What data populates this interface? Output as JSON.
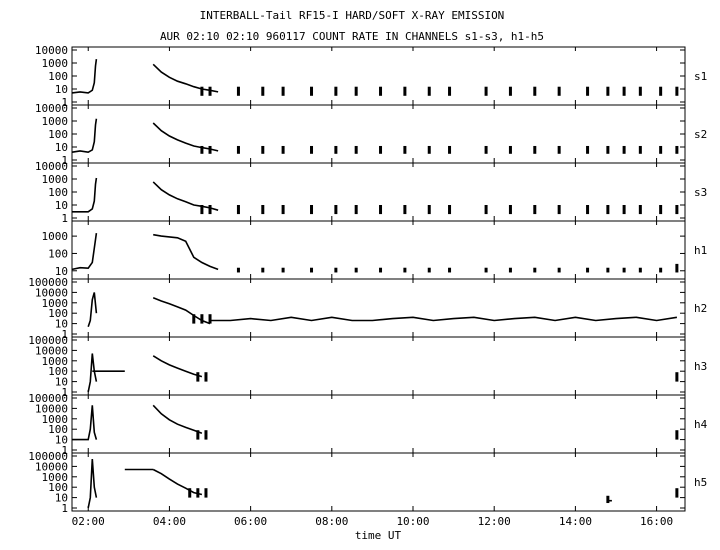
{
  "chart_data": {
    "type": "line",
    "title": "INTERBALL-Tail RF15-I HARD/SOFT X-RAY EMISSION",
    "subtitle": "AUR 02:10 02:10 960117  COUNT RATE IN CHANNELS s1-s3, h1-h5",
    "xlabel": "time UT",
    "x_unit": "hours UT",
    "xlim": [
      1.6,
      16.7
    ],
    "x_ticks": [
      {
        "value": 2,
        "label": "02:00"
      },
      {
        "value": 4,
        "label": "04:00"
      },
      {
        "value": 6,
        "label": "06:00"
      },
      {
        "value": 8,
        "label": "08:00"
      },
      {
        "value": 10,
        "label": "10:00"
      },
      {
        "value": 12,
        "label": "12:00"
      },
      {
        "value": 14,
        "label": "14:00"
      },
      {
        "value": 16,
        "label": "16:00"
      }
    ],
    "y_scale": "log",
    "grid": false,
    "panels": [
      {
        "channel": "s1",
        "ylim": [
          1,
          10000
        ],
        "y_ticks": [
          "1",
          "10",
          "100",
          "1000",
          "10000"
        ],
        "series": [
          {
            "x": [
              1.6,
              1.8,
              2.0,
              2.1,
              2.15,
              2.18,
              2.2
            ],
            "y": [
              5,
              6,
              5,
              8,
              30,
              600,
              2000
            ]
          },
          {
            "x": [
              3.6,
              3.8,
              4.0,
              4.2,
              4.4,
              4.6,
              4.8,
              5.0,
              5.2
            ],
            "y": [
              800,
              200,
              80,
              40,
              25,
              15,
              10,
              8,
              6
            ]
          }
        ],
        "bursts": [
          {
            "x": 4.8,
            "low": 3,
            "high": 15
          },
          {
            "x": 5.0,
            "low": 3,
            "high": 15
          },
          {
            "x": 5.7,
            "low": 3,
            "high": 15
          },
          {
            "x": 6.3,
            "low": 3,
            "high": 15
          },
          {
            "x": 6.8,
            "low": 3,
            "high": 15
          },
          {
            "x": 7.5,
            "low": 3,
            "high": 15
          },
          {
            "x": 8.1,
            "low": 3,
            "high": 15
          },
          {
            "x": 8.6,
            "low": 3,
            "high": 15
          },
          {
            "x": 9.2,
            "low": 3,
            "high": 15
          },
          {
            "x": 9.8,
            "low": 3,
            "high": 15
          },
          {
            "x": 10.4,
            "low": 3,
            "high": 15
          },
          {
            "x": 10.9,
            "low": 3,
            "high": 15
          },
          {
            "x": 11.8,
            "low": 3,
            "high": 15
          },
          {
            "x": 12.4,
            "low": 3,
            "high": 15
          },
          {
            "x": 13.0,
            "low": 3,
            "high": 15
          },
          {
            "x": 13.6,
            "low": 3,
            "high": 15
          },
          {
            "x": 14.3,
            "low": 3,
            "high": 15
          },
          {
            "x": 14.8,
            "low": 3,
            "high": 15
          },
          {
            "x": 15.2,
            "low": 3,
            "high": 15
          },
          {
            "x": 15.6,
            "low": 3,
            "high": 15
          },
          {
            "x": 16.1,
            "low": 3,
            "high": 15
          },
          {
            "x": 16.5,
            "low": 3,
            "high": 15
          }
        ]
      },
      {
        "channel": "s2",
        "ylim": [
          1,
          10000
        ],
        "y_ticks": [
          "1",
          "10",
          "100",
          "1000",
          "10000"
        ],
        "series": [
          {
            "x": [
              1.6,
              1.8,
              2.0,
              2.1,
              2.15,
              2.18,
              2.2
            ],
            "y": [
              4,
              5,
              4,
              6,
              25,
              500,
              1500
            ]
          },
          {
            "x": [
              3.6,
              3.8,
              4.0,
              4.2,
              4.4,
              4.6,
              4.8,
              5.0,
              5.2
            ],
            "y": [
              700,
              180,
              70,
              35,
              20,
              12,
              9,
              7,
              5
            ]
          }
        ],
        "bursts": [
          {
            "x": 4.8,
            "low": 3,
            "high": 12
          },
          {
            "x": 5.0,
            "low": 3,
            "high": 12
          },
          {
            "x": 5.7,
            "low": 3,
            "high": 12
          },
          {
            "x": 6.3,
            "low": 3,
            "high": 12
          },
          {
            "x": 6.8,
            "low": 3,
            "high": 12
          },
          {
            "x": 7.5,
            "low": 3,
            "high": 12
          },
          {
            "x": 8.1,
            "low": 3,
            "high": 12
          },
          {
            "x": 8.6,
            "low": 3,
            "high": 12
          },
          {
            "x": 9.2,
            "low": 3,
            "high": 12
          },
          {
            "x": 9.8,
            "low": 3,
            "high": 12
          },
          {
            "x": 10.4,
            "low": 3,
            "high": 12
          },
          {
            "x": 10.9,
            "low": 3,
            "high": 12
          },
          {
            "x": 11.8,
            "low": 3,
            "high": 12
          },
          {
            "x": 12.4,
            "low": 3,
            "high": 12
          },
          {
            "x": 13.0,
            "low": 3,
            "high": 12
          },
          {
            "x": 13.6,
            "low": 3,
            "high": 12
          },
          {
            "x": 14.3,
            "low": 3,
            "high": 12
          },
          {
            "x": 14.8,
            "low": 3,
            "high": 12
          },
          {
            "x": 15.2,
            "low": 3,
            "high": 12
          },
          {
            "x": 15.6,
            "low": 3,
            "high": 12
          },
          {
            "x": 16.1,
            "low": 3,
            "high": 12
          },
          {
            "x": 16.5,
            "low": 3,
            "high": 12
          }
        ]
      },
      {
        "channel": "s3",
        "ylim": [
          1,
          10000
        ],
        "y_ticks": [
          "1",
          "10",
          "100",
          "1000",
          "10000"
        ],
        "series": [
          {
            "x": [
              1.6,
              1.8,
              2.0,
              2.1,
              2.15,
              2.18,
              2.2
            ],
            "y": [
              3,
              3,
              3,
              5,
              20,
              400,
              1200
            ]
          },
          {
            "x": [
              3.6,
              3.8,
              4.0,
              4.2,
              4.4,
              4.6,
              4.8,
              5.0,
              5.2
            ],
            "y": [
              600,
              150,
              60,
              30,
              18,
              10,
              8,
              6,
              4
            ]
          }
        ],
        "bursts": [
          {
            "x": 4.8,
            "low": 2,
            "high": 10
          },
          {
            "x": 5.0,
            "low": 2,
            "high": 10
          },
          {
            "x": 5.7,
            "low": 2,
            "high": 10
          },
          {
            "x": 6.3,
            "low": 2,
            "high": 10
          },
          {
            "x": 6.8,
            "low": 2,
            "high": 10
          },
          {
            "x": 7.5,
            "low": 2,
            "high": 10
          },
          {
            "x": 8.1,
            "low": 2,
            "high": 10
          },
          {
            "x": 8.6,
            "low": 2,
            "high": 10
          },
          {
            "x": 9.2,
            "low": 2,
            "high": 10
          },
          {
            "x": 9.8,
            "low": 2,
            "high": 10
          },
          {
            "x": 10.4,
            "low": 2,
            "high": 10
          },
          {
            "x": 10.9,
            "low": 2,
            "high": 10
          },
          {
            "x": 11.8,
            "low": 2,
            "high": 10
          },
          {
            "x": 12.4,
            "low": 2,
            "high": 10
          },
          {
            "x": 13.0,
            "low": 2,
            "high": 10
          },
          {
            "x": 13.6,
            "low": 2,
            "high": 10
          },
          {
            "x": 14.3,
            "low": 2,
            "high": 10
          },
          {
            "x": 14.8,
            "low": 2,
            "high": 10
          },
          {
            "x": 15.2,
            "low": 2,
            "high": 10
          },
          {
            "x": 15.6,
            "low": 2,
            "high": 10
          },
          {
            "x": 16.1,
            "low": 2,
            "high": 10
          },
          {
            "x": 16.5,
            "low": 2,
            "high": 10
          }
        ]
      },
      {
        "channel": "h1",
        "ylim": [
          5,
          5000
        ],
        "y_ticks": [
          "10",
          "100",
          "1000"
        ],
        "series": [
          {
            "x": [
              1.6,
              1.8,
              2.0,
              2.1,
              2.15,
              2.2
            ],
            "y": [
              12,
              15,
              14,
              30,
              200,
              1500
            ]
          },
          {
            "x": [
              3.6,
              3.8,
              4.0,
              4.2,
              4.4,
              4.6,
              4.8,
              5.0,
              5.2
            ],
            "y": [
              1200,
              1000,
              900,
              800,
              500,
              60,
              30,
              18,
              12
            ]
          }
        ],
        "bursts": [
          {
            "x": 5.7,
            "low": 8,
            "high": 15
          },
          {
            "x": 6.3,
            "low": 8,
            "high": 15
          },
          {
            "x": 6.8,
            "low": 8,
            "high": 15
          },
          {
            "x": 7.5,
            "low": 8,
            "high": 15
          },
          {
            "x": 8.1,
            "low": 8,
            "high": 15
          },
          {
            "x": 8.6,
            "low": 8,
            "high": 15
          },
          {
            "x": 9.2,
            "low": 8,
            "high": 15
          },
          {
            "x": 9.8,
            "low": 8,
            "high": 15
          },
          {
            "x": 10.4,
            "low": 8,
            "high": 15
          },
          {
            "x": 10.9,
            "low": 8,
            "high": 15
          },
          {
            "x": 11.8,
            "low": 8,
            "high": 15
          },
          {
            "x": 12.4,
            "low": 8,
            "high": 15
          },
          {
            "x": 13.0,
            "low": 8,
            "high": 15
          },
          {
            "x": 13.6,
            "low": 8,
            "high": 15
          },
          {
            "x": 14.3,
            "low": 8,
            "high": 15
          },
          {
            "x": 14.8,
            "low": 8,
            "high": 15
          },
          {
            "x": 15.2,
            "low": 8,
            "high": 15
          },
          {
            "x": 15.6,
            "low": 8,
            "high": 15
          },
          {
            "x": 16.1,
            "low": 8,
            "high": 15
          },
          {
            "x": 16.5,
            "low": 8,
            "high": 25
          }
        ]
      },
      {
        "channel": "h2",
        "ylim": [
          1,
          100000
        ],
        "y_ticks": [
          "1",
          "10",
          "100",
          "1000",
          "10000",
          "100000"
        ],
        "series": [
          {
            "x": [
              2.0,
              2.05,
              2.1,
              2.15,
              2.2
            ],
            "y": [
              5,
              20,
              2000,
              10000,
              100
            ]
          },
          {
            "x": [
              3.6,
              3.8,
              4.0,
              4.2,
              4.4,
              4.6,
              4.8,
              5.0
            ],
            "y": [
              3000,
              1500,
              800,
              400,
              200,
              60,
              20,
              10
            ]
          },
          {
            "x": [
              5.0,
              5.5,
              6.0,
              6.5,
              7.0,
              7.5,
              8.0,
              8.5,
              9.0,
              9.5,
              10.0,
              10.5,
              11.0,
              11.5,
              12.0,
              12.5,
              13.0,
              13.5,
              14.0,
              14.5,
              15.0,
              15.5,
              16.0,
              16.5
            ],
            "y": [
              20,
              20,
              30,
              20,
              40,
              20,
              40,
              20,
              20,
              30,
              40,
              20,
              30,
              40,
              20,
              30,
              40,
              20,
              40,
              20,
              30,
              40,
              20,
              40
            ]
          }
        ],
        "bursts": [
          {
            "x": 4.6,
            "low": 10,
            "high": 80
          },
          {
            "x": 4.8,
            "low": 10,
            "high": 80
          },
          {
            "x": 5.0,
            "low": 10,
            "high": 80
          }
        ]
      },
      {
        "channel": "h3",
        "ylim": [
          1,
          100000
        ],
        "y_ticks": [
          "1",
          "10",
          "100",
          "1000",
          "10000",
          "100000"
        ],
        "series": [
          {
            "x": [
              2.0,
              2.05,
              2.1,
              2.15,
              2.2
            ],
            "y": [
              1,
              10,
              5000,
              100,
              10
            ]
          },
          {
            "x": [
              2.1,
              2.9
            ],
            "y": [
              100,
              100
            ]
          },
          {
            "x": [
              3.6,
              3.8,
              4.0,
              4.2,
              4.4,
              4.6,
              4.8
            ],
            "y": [
              3000,
              1000,
              400,
              200,
              100,
              50,
              30
            ]
          }
        ],
        "bursts": [
          {
            "x": 4.7,
            "low": 10,
            "high": 80
          },
          {
            "x": 4.9,
            "low": 10,
            "high": 80
          },
          {
            "x": 16.5,
            "low": 10,
            "high": 80
          }
        ]
      },
      {
        "channel": "h4",
        "ylim": [
          1,
          100000
        ],
        "y_ticks": [
          "1",
          "10",
          "100",
          "1000",
          "10000",
          "100000"
        ],
        "series": [
          {
            "x": [
              1.6,
              2.0,
              2.05,
              2.1,
              2.15,
              2.2
            ],
            "y": [
              10,
              10,
              100,
              20000,
              50,
              10
            ]
          },
          {
            "x": [
              3.6,
              3.8,
              4.0,
              4.2,
              4.4,
              4.6,
              4.8
            ],
            "y": [
              20000,
              3000,
              800,
              300,
              150,
              80,
              40
            ]
          }
        ],
        "bursts": [
          {
            "x": 4.7,
            "low": 10,
            "high": 80
          },
          {
            "x": 4.9,
            "low": 10,
            "high": 80
          },
          {
            "x": 16.5,
            "low": 10,
            "high": 80
          }
        ]
      },
      {
        "channel": "h5",
        "ylim": [
          1,
          100000
        ],
        "y_ticks": [
          "1",
          "10",
          "100",
          "1000",
          "10000",
          "100000"
        ],
        "series": [
          {
            "x": [
              2.0,
              2.05,
              2.1,
              2.15,
              2.2
            ],
            "y": [
              1,
              10,
              50000,
              100,
              10
            ]
          },
          {
            "x": [
              2.9,
              3.6
            ],
            "y": [
              5000,
              5000
            ]
          },
          {
            "x": [
              3.6,
              3.8,
              4.0,
              4.2,
              4.4,
              4.6,
              4.8
            ],
            "y": [
              5000,
              2000,
              600,
              200,
              80,
              30,
              20
            ]
          },
          {
            "x": [
              14.8,
              14.9
            ],
            "y": [
              5,
              5
            ]
          }
        ],
        "bursts": [
          {
            "x": 4.5,
            "low": 10,
            "high": 80
          },
          {
            "x": 4.7,
            "low": 10,
            "high": 80
          },
          {
            "x": 4.9,
            "low": 10,
            "high": 80
          },
          {
            "x": 14.8,
            "low": 3,
            "high": 15
          },
          {
            "x": 16.5,
            "low": 10,
            "high": 80
          }
        ]
      }
    ]
  }
}
